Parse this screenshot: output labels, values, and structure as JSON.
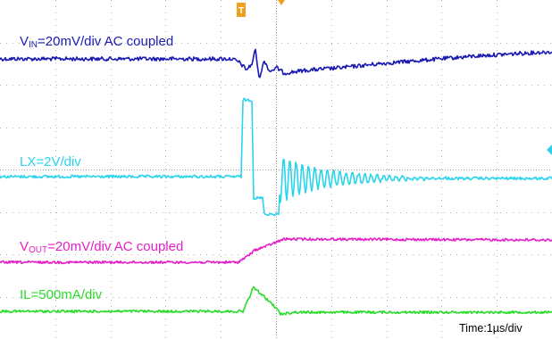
{
  "chart_data": {
    "type": "line",
    "title": "",
    "grid": true,
    "time_label": "Time:1µs/div",
    "series": [
      {
        "name": "VIN",
        "label_main": "V",
        "label_sub": "IN",
        "label_rest": "=20mV/div AC coupled",
        "color": "#1a1ab4",
        "points": [
          [
            0,
            66
          ],
          [
            260,
            66
          ],
          [
            268,
            70
          ],
          [
            276,
            78
          ],
          [
            282,
            72
          ],
          [
            286,
            55
          ],
          [
            290,
            88
          ],
          [
            296,
            68
          ],
          [
            302,
            80
          ],
          [
            310,
            76
          ],
          [
            318,
            82
          ],
          [
            340,
            79
          ],
          [
            380,
            76
          ],
          [
            430,
            71
          ],
          [
            480,
            67
          ],
          [
            530,
            63
          ],
          [
            580,
            60
          ],
          [
            618,
            58
          ]
        ],
        "noise": 2.2
      },
      {
        "name": "LX",
        "label_main": "LX=2V/div",
        "label_sub": "",
        "label_rest": "",
        "color": "#2ad4ec",
        "points": [
          [
            0,
            198
          ],
          [
            270,
            198
          ],
          [
            272,
            112
          ],
          [
            282,
            112
          ],
          [
            284,
            222
          ],
          [
            294,
            222
          ],
          [
            296,
            240
          ],
          [
            312,
            240
          ],
          [
            314,
            200
          ],
          [
            618,
            200
          ]
        ],
        "noise": 1.6,
        "ringing": {
          "start": 314,
          "end": 500,
          "center": 200,
          "amp": 26,
          "period": 7,
          "decay": 55
        }
      },
      {
        "name": "VOUT",
        "label_main": "V",
        "label_sub": "OUT",
        "label_rest": "=20mV/div AC coupled",
        "color": "#e61ec8",
        "points": [
          [
            0,
            294
          ],
          [
            266,
            294
          ],
          [
            276,
            288
          ],
          [
            286,
            280
          ],
          [
            298,
            276
          ],
          [
            308,
            272
          ],
          [
            318,
            268
          ],
          [
            618,
            269
          ]
        ],
        "noise": 1.4
      },
      {
        "name": "IL",
        "label_main": "IL=500mA/div",
        "label_sub": "",
        "label_rest": "",
        "color": "#2adc2a",
        "points": [
          [
            0,
            349
          ],
          [
            272,
            349
          ],
          [
            284,
            322
          ],
          [
            308,
            344
          ],
          [
            314,
            352
          ],
          [
            330,
            350
          ],
          [
            618,
            350
          ]
        ],
        "noise": 1.4
      }
    ]
  }
}
